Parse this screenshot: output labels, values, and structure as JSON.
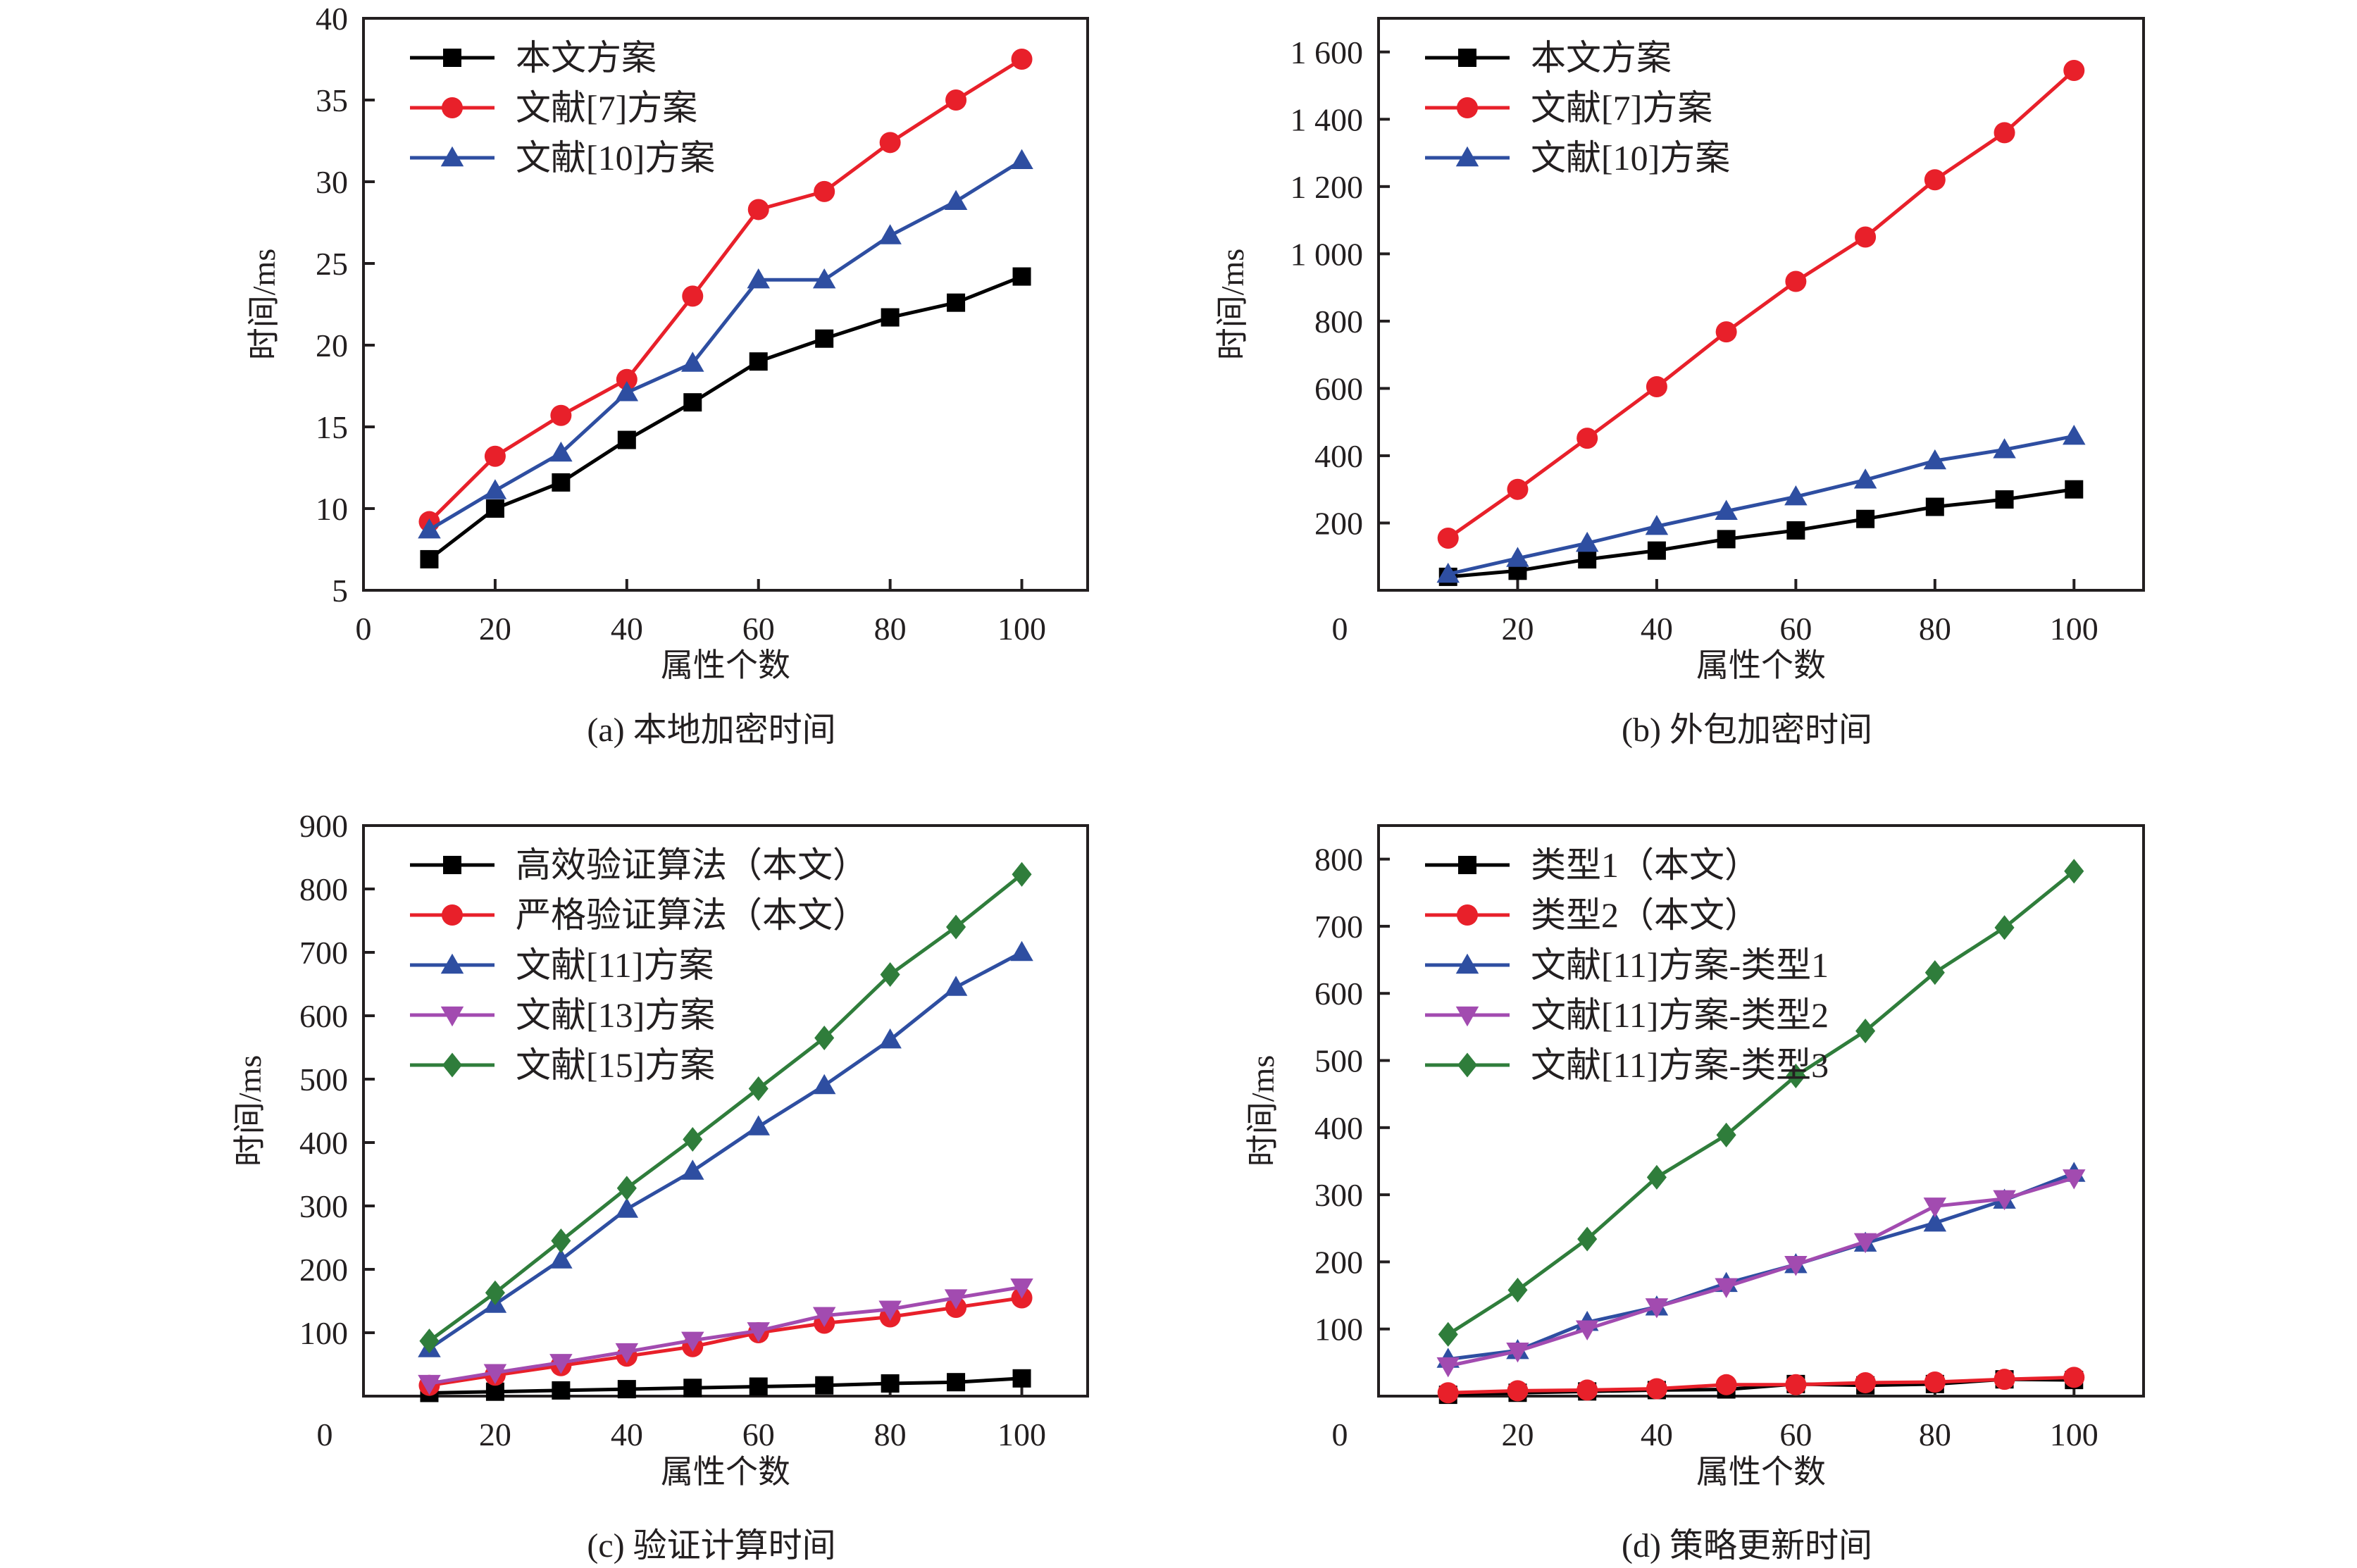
{
  "chart_data": [
    {
      "id": "a",
      "type": "line",
      "title": "(a) 本地加密时间",
      "xlabel": "属性个数",
      "ylabel": "时间/ms",
      "xlim": [
        0,
        110
      ],
      "ylim": [
        5,
        40
      ],
      "xticks": [
        0,
        20,
        40,
        60,
        80,
        100
      ],
      "xtick_labels": [
        "0",
        "20",
        "40",
        "60",
        "80",
        "100"
      ],
      "yticks": [
        5,
        10,
        15,
        20,
        25,
        30,
        35,
        40
      ],
      "ytick_labels": [
        "5",
        "10",
        "15",
        "20",
        "25",
        "30",
        "35",
        "40"
      ],
      "grid": false,
      "legend_position": "top-left",
      "x": [
        10,
        20,
        30,
        40,
        50,
        60,
        70,
        80,
        90,
        100
      ],
      "series": [
        {
          "name": "本文方案",
          "color": "#000000",
          "marker": "square",
          "values": [
            6.9,
            10.0,
            11.6,
            14.2,
            16.5,
            19.0,
            20.4,
            21.7,
            22.6,
            24.2
          ]
        },
        {
          "name": "文献[7]方案",
          "color": "#e8202a",
          "marker": "circle",
          "values": [
            9.2,
            13.2,
            15.7,
            17.9,
            23.0,
            28.3,
            29.4,
            32.4,
            35.0,
            37.5
          ]
        },
        {
          "name": "文献[10]方案",
          "color": "#2e4ea1",
          "marker": "triangle-up",
          "values": [
            8.7,
            11.1,
            13.4,
            17.1,
            18.9,
            24.0,
            24.0,
            26.7,
            28.8,
            31.3
          ]
        }
      ]
    },
    {
      "id": "b",
      "type": "line",
      "title": "(b) 外包加密时间",
      "xlabel": "属性个数",
      "ylabel": "时间/ms",
      "xlim": [
        0,
        110
      ],
      "ylim": [
        0,
        1700
      ],
      "xticks": [
        20,
        40,
        60,
        80,
        100
      ],
      "xtick_labels": [
        "20",
        "40",
        "60",
        "80",
        "100"
      ],
      "x_origin_label": "0",
      "yticks": [
        200,
        400,
        600,
        800,
        1000,
        1200,
        1400,
        1600
      ],
      "ytick_labels": [
        "200",
        "400",
        "600",
        "800",
        "1 000",
        "1 200",
        "1 400",
        "1 600"
      ],
      "grid": false,
      "legend_position": "top-left",
      "x": [
        10,
        20,
        30,
        40,
        50,
        60,
        70,
        80,
        90,
        100
      ],
      "series": [
        {
          "name": "本文方案",
          "color": "#000000",
          "marker": "square",
          "values": [
            40,
            58,
            92,
            118,
            152,
            178,
            212,
            248,
            270,
            300
          ]
        },
        {
          "name": "文献[7]方案",
          "color": "#e8202a",
          "marker": "circle",
          "values": [
            155,
            300,
            452,
            605,
            768,
            918,
            1050,
            1220,
            1360,
            1545
          ]
        },
        {
          "name": "文献[10]方案",
          "color": "#2e4ea1",
          "marker": "triangle-up",
          "values": [
            48,
            95,
            140,
            190,
            235,
            278,
            328,
            385,
            418,
            458
          ]
        }
      ]
    },
    {
      "id": "c",
      "type": "line",
      "title": "(c) 验证计算时间",
      "xlabel": "属性个数",
      "ylabel": "时间/ms",
      "xlim": [
        0,
        110
      ],
      "ylim": [
        0,
        900
      ],
      "xticks": [
        20,
        40,
        60,
        80,
        100
      ],
      "xtick_labels": [
        "20",
        "40",
        "60",
        "80",
        "100"
      ],
      "x_origin_label": "0",
      "yticks": [
        100,
        200,
        300,
        400,
        500,
        600,
        700,
        800,
        900
      ],
      "ytick_labels": [
        "100",
        "200",
        "300",
        "400",
        "500",
        "600",
        "700",
        "800",
        "900"
      ],
      "grid": false,
      "legend_position": "top-left",
      "x": [
        10,
        20,
        30,
        40,
        50,
        60,
        70,
        80,
        90,
        100
      ],
      "series": [
        {
          "name": "高效验证算法（本文）",
          "color": "#000000",
          "marker": "square",
          "values": [
            5,
            7,
            9,
            11,
            13,
            15,
            17,
            20,
            22,
            28
          ]
        },
        {
          "name": "严格验证算法（本文）",
          "color": "#e8202a",
          "marker": "circle",
          "values": [
            17,
            33,
            48,
            63,
            78,
            100,
            115,
            125,
            140,
            155
          ]
        },
        {
          "name": "文献[11]方案",
          "color": "#2e4ea1",
          "marker": "triangle-up",
          "values": [
            75,
            145,
            215,
            295,
            355,
            425,
            490,
            562,
            645,
            700
          ]
        },
        {
          "name": "文献[13]方案",
          "color": "#a24bb0",
          "marker": "triangle-down",
          "values": [
            20,
            37,
            53,
            70,
            88,
            103,
            127,
            137,
            155,
            172
          ]
        },
        {
          "name": "文献[15]方案",
          "color": "#2f7d3b",
          "marker": "diamond",
          "values": [
            87,
            163,
            245,
            328,
            405,
            485,
            565,
            665,
            740,
            823
          ]
        }
      ]
    },
    {
      "id": "d",
      "type": "line",
      "title": "(d) 策略更新时间",
      "xlabel": "属性个数",
      "ylabel": "时间/ms",
      "xlim": [
        0,
        110
      ],
      "ylim": [
        0,
        850
      ],
      "xticks": [
        20,
        40,
        60,
        80,
        100
      ],
      "xtick_labels": [
        "20",
        "40",
        "60",
        "80",
        "100"
      ],
      "x_origin_label": "0",
      "yticks": [
        100,
        200,
        300,
        400,
        500,
        600,
        700,
        800
      ],
      "ytick_labels": [
        "100",
        "200",
        "300",
        "400",
        "500",
        "600",
        "700",
        "800"
      ],
      "grid": false,
      "legend_position": "top-left",
      "x": [
        10,
        20,
        30,
        40,
        50,
        60,
        70,
        80,
        90,
        100
      ],
      "series": [
        {
          "name": "类型1（本文）",
          "color": "#000000",
          "marker": "square",
          "values": [
            2,
            5,
            7,
            9,
            10,
            18,
            16,
            18,
            25,
            24
          ]
        },
        {
          "name": "类型2（本文）",
          "color": "#e8202a",
          "marker": "circle",
          "values": [
            5,
            8,
            9,
            11,
            17,
            17,
            20,
            21,
            25,
            28
          ]
        },
        {
          "name": "文献[11]方案-类型1",
          "color": "#2e4ea1",
          "marker": "triangle-up",
          "values": [
            55,
            68,
            110,
            133,
            168,
            196,
            228,
            258,
            292,
            332
          ]
        },
        {
          "name": "文献[11]方案-类型2",
          "color": "#a24bb0",
          "marker": "triangle-down",
          "values": [
            45,
            67,
            100,
            133,
            163,
            196,
            230,
            283,
            294,
            325
          ]
        },
        {
          "name": "文献[11]方案-类型3",
          "color": "#2f7d3b",
          "marker": "diamond",
          "values": [
            92,
            158,
            234,
            326,
            389,
            477,
            544,
            631,
            698,
            782
          ]
        }
      ]
    }
  ]
}
